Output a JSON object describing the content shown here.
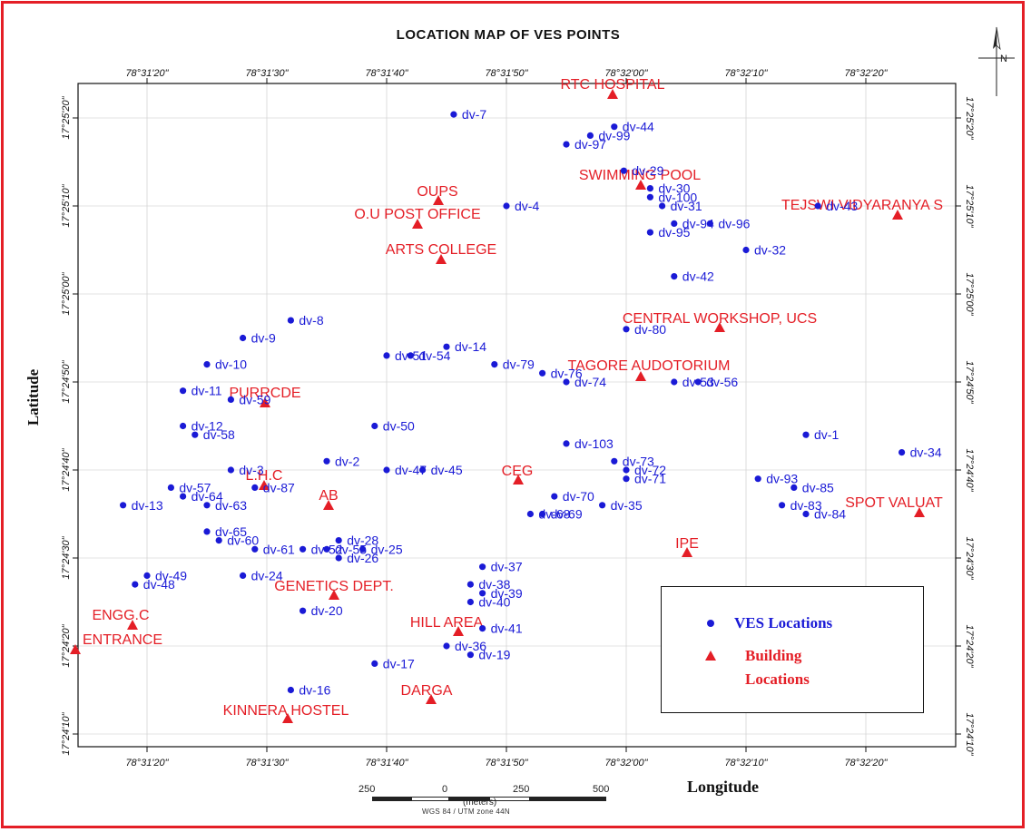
{
  "title": "LOCATION MAP OF VES POINTS",
  "axis": {
    "xlabel": "Longitude",
    "ylabel": "Latitude",
    "lon_ticks": [
      "78°31'20\"",
      "78°31'30\"",
      "78°31'40\"",
      "78°31'50\"",
      "78°32'00\"",
      "78°32'10\"",
      "78°32'20\""
    ],
    "lat_ticks": [
      "17°25'20\"",
      "17°25'10\"",
      "17°25'00\"",
      "17°24'50\"",
      "17°24'40\"",
      "17°24'30\"",
      "17°24'20\"",
      "17°24'10\""
    ]
  },
  "legend": {
    "ves_label": "VES Locations",
    "building_label_1": "Building",
    "building_label_2": "Locations",
    "ves_color": "#1a1ad6",
    "building_color": "#e41e26"
  },
  "scale_bar": {
    "ticks": [
      "250",
      "0",
      "250",
      "500"
    ],
    "unit": "(meters)",
    "projection": "WGS 84 / UTM zone 44N"
  },
  "north_arrow": "N",
  "colors": {
    "frame": "#e41e26",
    "ves": "#1a1ad6",
    "building": "#e41e26"
  },
  "map_data": {
    "type": "map",
    "ves_points": [
      {
        "label": "dv-7",
        "lon": "78°31'45.6\"",
        "lat": "17°25'20.4\""
      },
      {
        "label": "dv-44",
        "lon": "78°31'59\"",
        "lat": "17°25'19\""
      },
      {
        "label": "dv-99",
        "lon": "78°31'57\"",
        "lat": "17°25'18\""
      },
      {
        "label": "dv-97",
        "lon": "78°31'55\"",
        "lat": "17°25'17\""
      },
      {
        "label": "dv-29",
        "lon": "78°31'59.8\"",
        "lat": "17°25'14\""
      },
      {
        "label": "dv-30",
        "lon": "78°32'02\"",
        "lat": "17°25'12\""
      },
      {
        "label": "dv-100",
        "lon": "78°32'02\"",
        "lat": "17°25'11\""
      },
      {
        "label": "dv-31",
        "lon": "78°32'03\"",
        "lat": "17°25'10\""
      },
      {
        "label": "dv-4",
        "lon": "78°31'50\"",
        "lat": "17°25'10\""
      },
      {
        "label": "dv-94",
        "lon": "78°32'04\"",
        "lat": "17°25'08\""
      },
      {
        "label": "dv-96",
        "lon": "78°32'07\"",
        "lat": "17°25'08\""
      },
      {
        "label": "dv-95",
        "lon": "78°32'02\"",
        "lat": "17°25'07\""
      },
      {
        "label": "dv-43",
        "lon": "78°32'16\"",
        "lat": "17°25'10\""
      },
      {
        "label": "dv-32",
        "lon": "78°32'10\"",
        "lat": "17°25'05\""
      },
      {
        "label": "dv-42",
        "lon": "78°32'04\"",
        "lat": "17°25'02\""
      },
      {
        "label": "dv-8",
        "lon": "78°31'32\"",
        "lat": "17°24'57\""
      },
      {
        "label": "dv-9",
        "lon": "78°31'28\"",
        "lat": "17°24'55\""
      },
      {
        "label": "dv-80",
        "lon": "78°32'00\"",
        "lat": "17°24'56\""
      },
      {
        "label": "dv-14",
        "lon": "78°31'45\"",
        "lat": "17°24'54\""
      },
      {
        "label": "dv-51",
        "lon": "78°31'40\"",
        "lat": "17°24'53\""
      },
      {
        "label": "dv-54",
        "lon": "78°31'42\"",
        "lat": "17°24'53\""
      },
      {
        "label": "dv-79",
        "lon": "78°31'49\"",
        "lat": "17°24'52\""
      },
      {
        "label": "dv-76",
        "lon": "78°31'53\"",
        "lat": "17°24'51\""
      },
      {
        "label": "dv-74",
        "lon": "78°31'55\"",
        "lat": "17°24'50\""
      },
      {
        "label": "dv-10",
        "lon": "78°31'25\"",
        "lat": "17°24'52\""
      },
      {
        "label": "dv-53",
        "lon": "78°32'04\"",
        "lat": "17°24'50\""
      },
      {
        "label": "dv-56",
        "lon": "78°32'06\"",
        "lat": "17°24'50\""
      },
      {
        "label": "dv-11",
        "lon": "78°31'23\"",
        "lat": "17°24'49\""
      },
      {
        "label": "dv-59",
        "lon": "78°31'27\"",
        "lat": "17°24'48\""
      },
      {
        "label": "dv-50",
        "lon": "78°31'39\"",
        "lat": "17°24'45\""
      },
      {
        "label": "dv-12",
        "lon": "78°31'23\"",
        "lat": "17°24'45\""
      },
      {
        "label": "dv-58",
        "lon": "78°31'24\"",
        "lat": "17°24'44\""
      },
      {
        "label": "dv-1",
        "lon": "78°32'15\"",
        "lat": "17°24'44\""
      },
      {
        "label": "dv-103",
        "lon": "78°31'55\"",
        "lat": "17°24'43\""
      },
      {
        "label": "dv-34",
        "lon": "78°32'23\"",
        "lat": "17°24'42\""
      },
      {
        "label": "dv-2",
        "lon": "78°31'35\"",
        "lat": "17°24'41\""
      },
      {
        "label": "dv-73",
        "lon": "78°31'59\"",
        "lat": "17°24'41\""
      },
      {
        "label": "dv-72",
        "lon": "78°32'00\"",
        "lat": "17°24'40\""
      },
      {
        "label": "dv-71",
        "lon": "78°32'00\"",
        "lat": "17°24'39\""
      },
      {
        "label": "dv-47",
        "lon": "78°31'40\"",
        "lat": "17°24'40\""
      },
      {
        "label": "dv-45",
        "lon": "78°31'43\"",
        "lat": "17°24'40\""
      },
      {
        "label": "dv-3",
        "lon": "78°31'27\"",
        "lat": "17°24'40\""
      },
      {
        "label": "dv-93",
        "lon": "78°32'11\"",
        "lat": "17°24'39\""
      },
      {
        "label": "dv-85",
        "lon": "78°32'14\"",
        "lat": "17°24'38\""
      },
      {
        "label": "dv-57",
        "lon": "78°31'22\"",
        "lat": "17°24'38\""
      },
      {
        "label": "dv-87",
        "lon": "78°31'29\"",
        "lat": "17°24'38\""
      },
      {
        "label": "dv-64",
        "lon": "78°31'23\"",
        "lat": "17°24'37\""
      },
      {
        "label": "dv-13",
        "lon": "78°31'18\"",
        "lat": "17°24'36\""
      },
      {
        "label": "dv-63",
        "lon": "78°31'25\"",
        "lat": "17°24'36\""
      },
      {
        "label": "dv-70",
        "lon": "78°31'54\"",
        "lat": "17°24'37\""
      },
      {
        "label": "dv-35",
        "lon": "78°31'58\"",
        "lat": "17°24'36\""
      },
      {
        "label": "dv-68",
        "lon": "78°31'52\"",
        "lat": "17°24'35\""
      },
      {
        "label": "dv-69",
        "lon": "78°31'53\"",
        "lat": "17°24'35\""
      },
      {
        "label": "dv-83",
        "lon": "78°32'13\"",
        "lat": "17°24'36\""
      },
      {
        "label": "dv-84",
        "lon": "78°32'15\"",
        "lat": "17°24'35\""
      },
      {
        "label": "dv-65",
        "lon": "78°31'25\"",
        "lat": "17°24'33\""
      },
      {
        "label": "dv-60",
        "lon": "78°31'26\"",
        "lat": "17°24'32\""
      },
      {
        "label": "dv-28",
        "lon": "78°31'36\"",
        "lat": "17°24'32\""
      },
      {
        "label": "dv-61",
        "lon": "78°31'29\"",
        "lat": "17°24'31\""
      },
      {
        "label": "dv-52",
        "lon": "78°31'33\"",
        "lat": "17°24'31\""
      },
      {
        "label": "dv-55",
        "lon": "78°31'35\"",
        "lat": "17°24'31\""
      },
      {
        "label": "dv-25",
        "lon": "78°31'38\"",
        "lat": "17°24'31\""
      },
      {
        "label": "dv-26",
        "lon": "78°31'36\"",
        "lat": "17°24'30\""
      },
      {
        "label": "dv-37",
        "lon": "78°31'48\"",
        "lat": "17°24'29\""
      },
      {
        "label": "dv-24",
        "lon": "78°31'28\"",
        "lat": "17°24'28\""
      },
      {
        "label": "dv-49",
        "lon": "78°31'20\"",
        "lat": "17°24'28\""
      },
      {
        "label": "dv-48",
        "lon": "78°31'19\"",
        "lat": "17°24'27\""
      },
      {
        "label": "dv-38",
        "lon": "78°31'47\"",
        "lat": "17°24'27\""
      },
      {
        "label": "dv-39",
        "lon": "78°31'48\"",
        "lat": "17°24'26\""
      },
      {
        "label": "dv-40",
        "lon": "78°31'47\"",
        "lat": "17°24'25\""
      },
      {
        "label": "dv-20",
        "lon": "78°31'33\"",
        "lat": "17°24'24\""
      },
      {
        "label": "dv-41",
        "lon": "78°31'48\"",
        "lat": "17°24'22\""
      },
      {
        "label": "dv-36",
        "lon": "78°31'45\"",
        "lat": "17°24'20\""
      },
      {
        "label": "dv-19",
        "lon": "78°31'47\"",
        "lat": "17°24'19\""
      },
      {
        "label": "dv-17",
        "lon": "78°31'39\"",
        "lat": "17°24'18\""
      },
      {
        "label": "dv-16",
        "lon": "78°31'32\"",
        "lat": "17°24'15\""
      }
    ],
    "buildings": [
      {
        "label": "RTC HOSPITAL"
      },
      {
        "label": "SWIMMING POOL"
      },
      {
        "label": "OUPS"
      },
      {
        "label": "O.U POST OFFICE"
      },
      {
        "label": "TEJSWI VIDYARANYA S"
      },
      {
        "label": "ARTS COLLEGE"
      },
      {
        "label": "CENTRAL WORKSHOP, UCS"
      },
      {
        "label": "TAGORE AUDOTORIUM"
      },
      {
        "label": "PURRCDE"
      },
      {
        "label": "CEG"
      },
      {
        "label": "L.H.C"
      },
      {
        "label": "AB"
      },
      {
        "label": "SPOT VALUAT"
      },
      {
        "label": "IPE"
      },
      {
        "label": "GENETICS DEPT."
      },
      {
        "label": "ENGG.C"
      },
      {
        "label": "HILL AREA"
      },
      {
        "label": "ENTRANCE"
      },
      {
        "label": "DARGA"
      },
      {
        "label": "KINNERA HOSTEL"
      }
    ]
  }
}
